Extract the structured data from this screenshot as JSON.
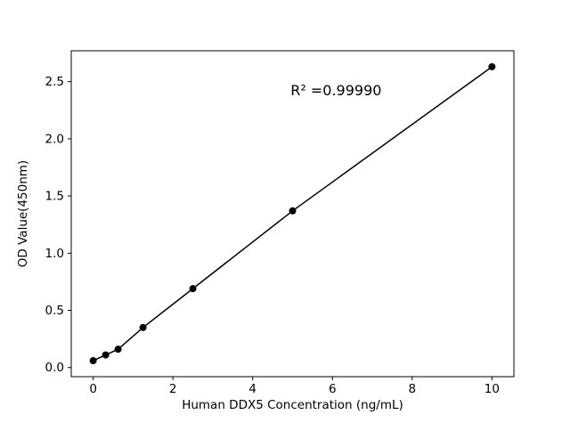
{
  "figure": {
    "background": "#ffffff"
  },
  "chart_data": {
    "type": "scatter",
    "title": "",
    "xlabel": "Human DDX5 Concentration (ng/mL)",
    "ylabel": "OD Value(450nm)",
    "annotation": "R² =0.99990",
    "annotation_pos": {
      "x": 4.95,
      "y": 2.38
    },
    "x": [
      0,
      0.3125,
      0.625,
      1.25,
      2.5,
      5,
      10
    ],
    "y": [
      0.06,
      0.11,
      0.16,
      0.35,
      0.69,
      1.37,
      2.63
    ],
    "xlim": [
      -0.55,
      10.55
    ],
    "ylim": [
      -0.08,
      2.77
    ],
    "xticks": [
      0,
      2,
      4,
      6,
      8,
      10
    ],
    "xtick_labels": [
      "0",
      "2",
      "4",
      "6",
      "8",
      "10"
    ],
    "yticks": [
      0.0,
      0.5,
      1.0,
      1.5,
      2.0,
      2.5
    ],
    "ytick_labels": [
      "0.0",
      "0.5",
      "1.0",
      "1.5",
      "2.0",
      "2.5"
    ],
    "line_color": "#000000",
    "marker_color": "#000000",
    "marker_size": 4,
    "grid": false,
    "legend": false
  }
}
